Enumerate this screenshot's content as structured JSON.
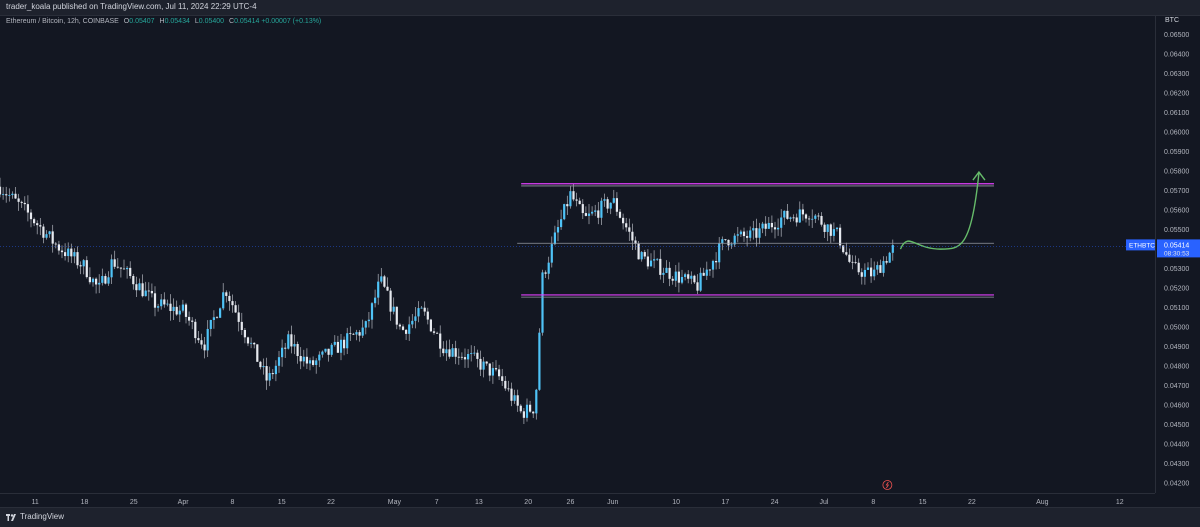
{
  "header": {
    "published": "trader_koala published on TradingView.com, Jul 11, 2024 22:29 UTC-4"
  },
  "legend": {
    "symbol": "Ethereum / Bitcoin, 12h, COINBASE",
    "open_label": "O",
    "open": "0.05407",
    "high_label": "H",
    "high": "0.05434",
    "low_label": "L",
    "low": "0.05400",
    "close_label": "C",
    "close": "0.05414",
    "change": "+0.00007 (+0.13%)"
  },
  "price_axis": {
    "currency": "BTC",
    "ticks": [
      "0.06500",
      "0.06400",
      "0.06300",
      "0.06200",
      "0.06100",
      "0.06000",
      "0.05900",
      "0.05800",
      "0.05700",
      "0.05600",
      "0.05500",
      "0.05400",
      "0.05300",
      "0.05200",
      "0.05100",
      "0.05000",
      "0.04900",
      "0.04800",
      "0.04700",
      "0.04600",
      "0.04500",
      "0.04400",
      "0.04300",
      "0.04200"
    ],
    "symbol_tag": "ETHBTC",
    "last_price": "0.05414",
    "countdown": "08:30:53"
  },
  "time_axis": {
    "ticks": [
      "11",
      "18",
      "25",
      "Apr",
      "8",
      "15",
      "22",
      "May",
      "7",
      "13",
      "20",
      "26",
      "Jun",
      "10",
      "17",
      "24",
      "Jul",
      "8",
      "15",
      "22",
      "Aug",
      "12"
    ]
  },
  "footer": {
    "brand": "TradingView"
  },
  "colors": {
    "up": "#26a69a",
    "down": "#ef5350",
    "accent": "#2962ff",
    "range": "#e040fb",
    "projection": "#66bb6a",
    "candle_body": "#e6e9ef",
    "candle_up": "#4fc3f7"
  },
  "chart_data": {
    "type": "candlestick",
    "title": "Ethereum / Bitcoin, 12h, COINBASE",
    "ylim": [
      0.0415,
      0.066
    ],
    "x_range": [
      "2024-03-06",
      "2024-08-17"
    ],
    "grid": false,
    "close_path": [
      [
        "2024-03-06",
        0.0572
      ],
      [
        "2024-03-10",
        0.0558
      ],
      [
        "2024-03-14",
        0.0542
      ],
      [
        "2024-03-18",
        0.0531
      ],
      [
        "2024-03-20",
        0.0519
      ],
      [
        "2024-03-22",
        0.0534
      ],
      [
        "2024-03-25",
        0.0524
      ],
      [
        "2024-03-28",
        0.0512
      ],
      [
        "2024-04-01",
        0.0508
      ],
      [
        "2024-04-04",
        0.0491
      ],
      [
        "2024-04-07",
        0.052
      ],
      [
        "2024-04-10",
        0.0496
      ],
      [
        "2024-04-13",
        0.0472
      ],
      [
        "2024-04-16",
        0.0493
      ],
      [
        "2024-04-19",
        0.048
      ],
      [
        "2024-04-23",
        0.049
      ],
      [
        "2024-04-27",
        0.05
      ],
      [
        "2024-04-29",
        0.0524
      ],
      [
        "2024-05-02",
        0.0498
      ],
      [
        "2024-05-05",
        0.0508
      ],
      [
        "2024-05-08",
        0.049
      ],
      [
        "2024-05-12",
        0.0484
      ],
      [
        "2024-05-16",
        0.0474
      ],
      [
        "2024-05-19",
        0.0456
      ],
      [
        "2024-05-21",
        0.0459
      ],
      [
        "2024-05-22",
        0.0525
      ],
      [
        "2024-05-24",
        0.0548
      ],
      [
        "2024-05-26",
        0.0568
      ],
      [
        "2024-05-28",
        0.0555
      ],
      [
        "2024-06-01",
        0.0565
      ],
      [
        "2024-06-05",
        0.0536
      ],
      [
        "2024-06-09",
        0.0528
      ],
      [
        "2024-06-13",
        0.0521
      ],
      [
        "2024-06-17",
        0.0545
      ],
      [
        "2024-06-21",
        0.0547
      ],
      [
        "2024-06-25",
        0.0556
      ],
      [
        "2024-06-29",
        0.0559
      ],
      [
        "2024-07-03",
        0.0547
      ],
      [
        "2024-07-05",
        0.053
      ],
      [
        "2024-07-08",
        0.0527
      ],
      [
        "2024-07-11",
        0.0541
      ]
    ],
    "annotations": {
      "range_top": 0.0573,
      "range_mid": 0.0543,
      "range_bottom": 0.0516,
      "projection_end": 0.0579
    }
  }
}
